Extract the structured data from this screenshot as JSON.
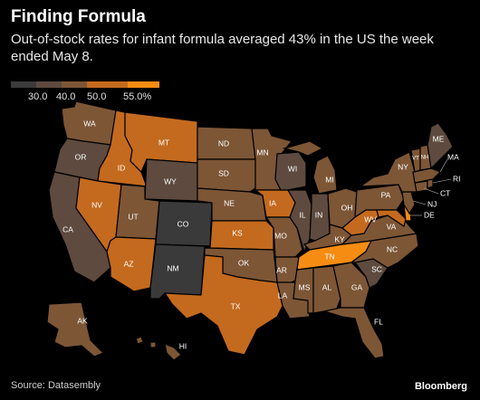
{
  "title": "Finding Formula",
  "subtitle": "Out-of-stock rates for infant formula averaged 43% in the US the week ended May 8.",
  "legend": {
    "ticks": [
      "30.0",
      "40.0",
      "50.0",
      "55.0%"
    ],
    "bins": [
      {
        "color": "#3a3a3a"
      },
      {
        "color": "#5e4a3e"
      },
      {
        "color": "#7d5636"
      },
      {
        "color": "#c46a1e"
      },
      {
        "color": "#f78c13"
      }
    ]
  },
  "map_data": {
    "type": "choropleth",
    "value_bins": [
      "<30",
      "30-40",
      "40-50",
      "50-55",
      ">55"
    ],
    "states": [
      {
        "id": "WA",
        "bin": 2
      },
      {
        "id": "OR",
        "bin": 1
      },
      {
        "id": "CA",
        "bin": 1
      },
      {
        "id": "ID",
        "bin": 3
      },
      {
        "id": "NV",
        "bin": 3
      },
      {
        "id": "MT",
        "bin": 3
      },
      {
        "id": "WY",
        "bin": 1
      },
      {
        "id": "UT",
        "bin": 2
      },
      {
        "id": "AZ",
        "bin": 3
      },
      {
        "id": "CO",
        "bin": 0
      },
      {
        "id": "NM",
        "bin": 0
      },
      {
        "id": "ND",
        "bin": 2
      },
      {
        "id": "SD",
        "bin": 2
      },
      {
        "id": "NE",
        "bin": 2
      },
      {
        "id": "KS",
        "bin": 3
      },
      {
        "id": "OK",
        "bin": 2
      },
      {
        "id": "TX",
        "bin": 3
      },
      {
        "id": "MN",
        "bin": 2
      },
      {
        "id": "IA",
        "bin": 3
      },
      {
        "id": "MO",
        "bin": 2
      },
      {
        "id": "AR",
        "bin": 2
      },
      {
        "id": "LA",
        "bin": 2
      },
      {
        "id": "WI",
        "bin": 1
      },
      {
        "id": "IL",
        "bin": 1
      },
      {
        "id": "MI",
        "bin": 2
      },
      {
        "id": "IN",
        "bin": 1
      },
      {
        "id": "OH",
        "bin": 2
      },
      {
        "id": "KY",
        "bin": 2
      },
      {
        "id": "TN",
        "bin": 4
      },
      {
        "id": "MS",
        "bin": 2
      },
      {
        "id": "AL",
        "bin": 2
      },
      {
        "id": "GA",
        "bin": 2
      },
      {
        "id": "FL",
        "bin": 2
      },
      {
        "id": "SC",
        "bin": 1
      },
      {
        "id": "NC",
        "bin": 2
      },
      {
        "id": "VA",
        "bin": 2
      },
      {
        "id": "WV",
        "bin": 3
      },
      {
        "id": "PA",
        "bin": 2
      },
      {
        "id": "NY",
        "bin": 2
      },
      {
        "id": "VT",
        "bin": 2
      },
      {
        "id": "NH",
        "bin": 2
      },
      {
        "id": "ME",
        "bin": 1
      },
      {
        "id": "MA",
        "bin": 2
      },
      {
        "id": "RI",
        "bin": 2
      },
      {
        "id": "CT",
        "bin": 2
      },
      {
        "id": "NJ",
        "bin": 2
      },
      {
        "id": "DE",
        "bin": 4
      },
      {
        "id": "MD",
        "bin": 3
      },
      {
        "id": "AK",
        "bin": 2
      },
      {
        "id": "HI",
        "bin": 2
      }
    ]
  },
  "source": "Source: Datasembly",
  "brand": "Bloomberg"
}
